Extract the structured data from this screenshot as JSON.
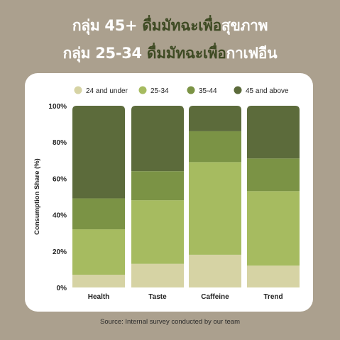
{
  "headline": {
    "line1_prefix": "กลุ่ม 45+ ",
    "line1_highlight": "ดื่มมัทฉะเพื่อ",
    "line1_suffix": "สุขภาพ",
    "line2_prefix": "กลุ่ม 25-34 ",
    "line2_highlight": "ดื่มมัทฉะเพื่อ",
    "line2_suffix": "กาเฟอีน"
  },
  "source": "Source: Internal survey conducted by our team",
  "colors": {
    "background": "#aba08e",
    "card": "#ffffff",
    "headline_highlight": "#3e4a23"
  },
  "chart_data": {
    "type": "bar",
    "stacked": true,
    "categories": [
      "Health",
      "Taste",
      "Caffeine",
      "Trend"
    ],
    "series": [
      {
        "name": "24 and under",
        "color": "#d6d3a4",
        "values": [
          7,
          13,
          18,
          12
        ]
      },
      {
        "name": "25-34",
        "color": "#a6bb60",
        "values": [
          25,
          35,
          51,
          41
        ]
      },
      {
        "name": "35-44",
        "color": "#7b9345",
        "values": [
          17,
          16,
          17,
          18
        ]
      },
      {
        "name": "45 and above",
        "color": "#5c6b3b",
        "values": [
          51,
          36,
          14,
          29
        ]
      }
    ],
    "ylabel": "Consumption Share (%)",
    "ylim": [
      0,
      100
    ],
    "yticks": [
      "0%",
      "20%",
      "40%",
      "60%",
      "80%",
      "100%"
    ],
    "legend_position": "top",
    "grid": false
  }
}
